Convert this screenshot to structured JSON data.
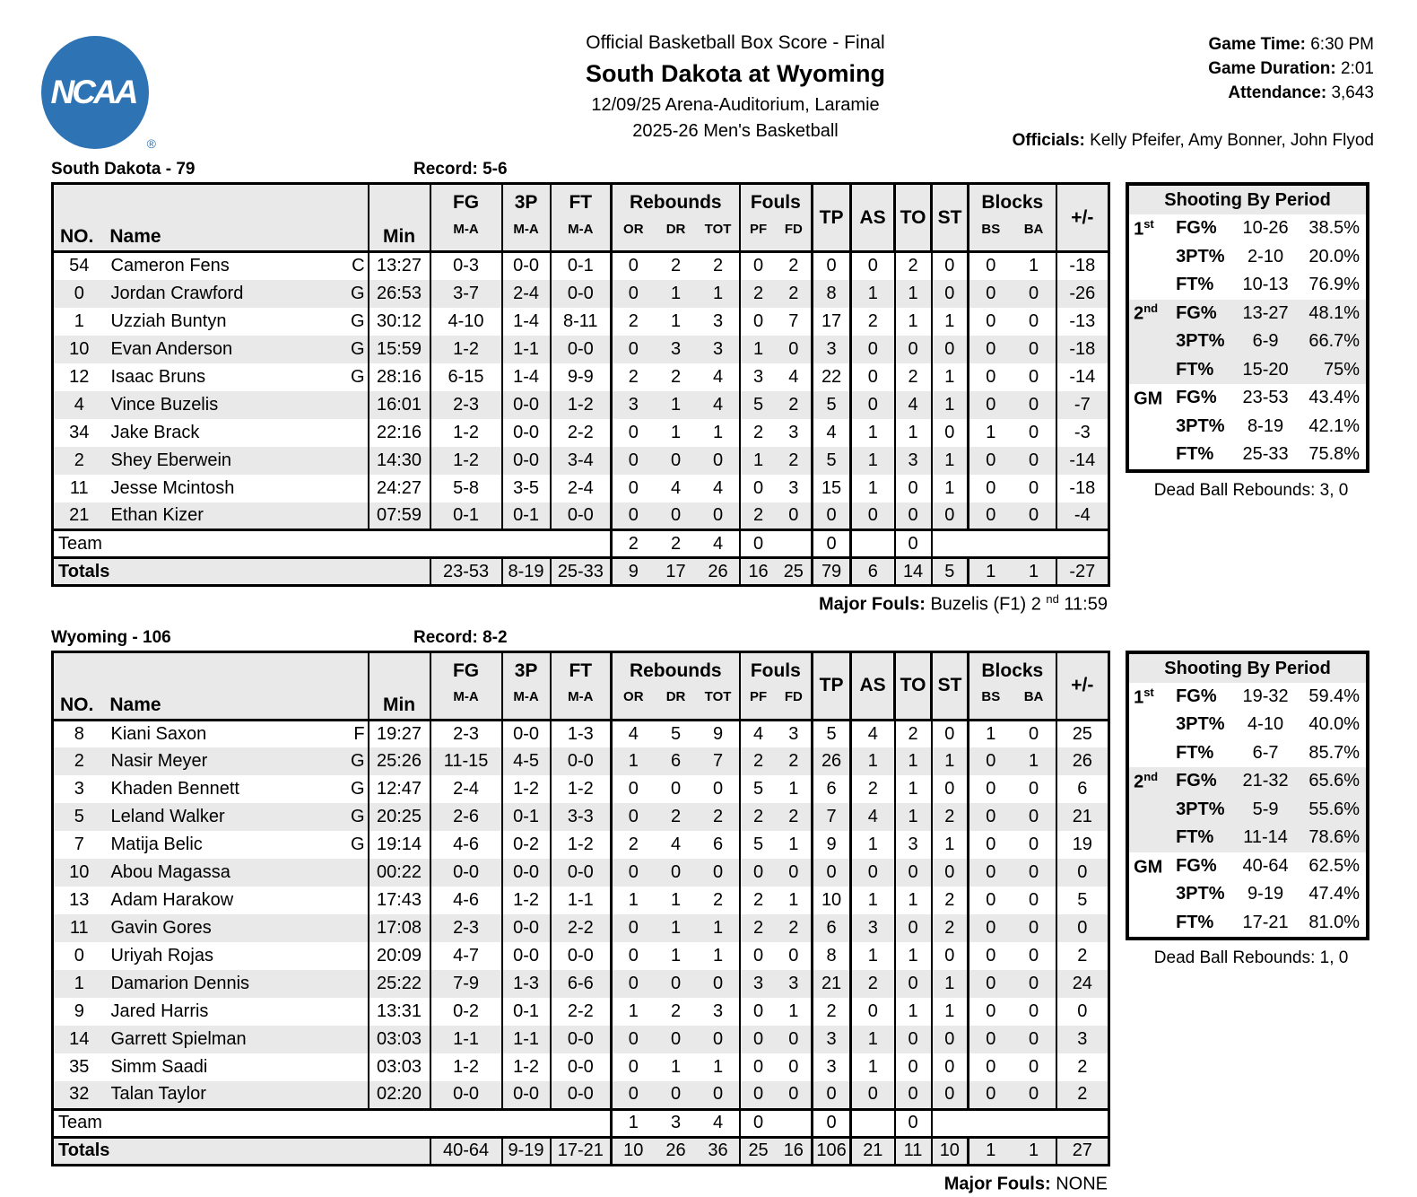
{
  "header": {
    "logo_text": "NCAA",
    "logo_reg": "®",
    "title_line": "Official Basketball Box Score - Final",
    "matchup": "South Dakota at Wyoming",
    "venue_line": "12/09/25 Arena-Auditorium, Laramie",
    "season_line": "2025-26 Men's Basketball",
    "game_time_label": "Game Time:",
    "game_time": "6:30 PM",
    "game_duration_label": "Game Duration:",
    "game_duration": "2:01",
    "attendance_label": "Attendance:",
    "attendance": "3,643",
    "officials_label": "Officials:",
    "officials": "Kelly Pfeifer, Amy Bonner, John Flyod"
  },
  "cols": {
    "no": "NO.",
    "name": "Name",
    "min": "Min",
    "fg": "FG",
    "p3": "3P",
    "ft": "FT",
    "ma": "M-A",
    "rebounds": "Rebounds",
    "or": "OR",
    "dr": "DR",
    "tot": "TOT",
    "fouls": "Fouls",
    "pf": "PF",
    "fd": "FD",
    "tp": "TP",
    "as": "AS",
    "to": "TO",
    "st": "ST",
    "blocks": "Blocks",
    "bs": "BS",
    "ba": "BA",
    "pm": "+/-",
    "team_label": "Team",
    "totals_label": "Totals",
    "shooting_title": "Shooting By Period"
  },
  "teams": [
    {
      "title": "South Dakota - 79",
      "record": "Record: 5-6",
      "players": [
        {
          "no": "54",
          "name": "Cameron Fens",
          "pos": "C",
          "min": "13:27",
          "fg": "0-3",
          "p3": "0-0",
          "ft": "0-1",
          "or": "0",
          "dr": "2",
          "tot": "2",
          "pf": "0",
          "fd": "2",
          "tp": "0",
          "as": "0",
          "to": "2",
          "st": "0",
          "bs": "0",
          "ba": "1",
          "pm": "-18"
        },
        {
          "no": "0",
          "name": "Jordan Crawford",
          "pos": "G",
          "min": "26:53",
          "fg": "3-7",
          "p3": "2-4",
          "ft": "0-0",
          "or": "0",
          "dr": "1",
          "tot": "1",
          "pf": "2",
          "fd": "2",
          "tp": "8",
          "as": "1",
          "to": "1",
          "st": "0",
          "bs": "0",
          "ba": "0",
          "pm": "-26"
        },
        {
          "no": "1",
          "name": "Uzziah Buntyn",
          "pos": "G",
          "min": "30:12",
          "fg": "4-10",
          "p3": "1-4",
          "ft": "8-11",
          "or": "2",
          "dr": "1",
          "tot": "3",
          "pf": "0",
          "fd": "7",
          "tp": "17",
          "as": "2",
          "to": "1",
          "st": "1",
          "bs": "0",
          "ba": "0",
          "pm": "-13"
        },
        {
          "no": "10",
          "name": "Evan Anderson",
          "pos": "G",
          "min": "15:59",
          "fg": "1-2",
          "p3": "1-1",
          "ft": "0-0",
          "or": "0",
          "dr": "3",
          "tot": "3",
          "pf": "1",
          "fd": "0",
          "tp": "3",
          "as": "0",
          "to": "0",
          "st": "0",
          "bs": "0",
          "ba": "0",
          "pm": "-18"
        },
        {
          "no": "12",
          "name": "Isaac Bruns",
          "pos": "G",
          "min": "28:16",
          "fg": "6-15",
          "p3": "1-4",
          "ft": "9-9",
          "or": "2",
          "dr": "2",
          "tot": "4",
          "pf": "3",
          "fd": "4",
          "tp": "22",
          "as": "0",
          "to": "2",
          "st": "1",
          "bs": "0",
          "ba": "0",
          "pm": "-14"
        },
        {
          "no": "4",
          "name": "Vince Buzelis",
          "pos": "",
          "min": "16:01",
          "fg": "2-3",
          "p3": "0-0",
          "ft": "1-2",
          "or": "3",
          "dr": "1",
          "tot": "4",
          "pf": "5",
          "fd": "2",
          "tp": "5",
          "as": "0",
          "to": "4",
          "st": "1",
          "bs": "0",
          "ba": "0",
          "pm": "-7"
        },
        {
          "no": "34",
          "name": "Jake Brack",
          "pos": "",
          "min": "22:16",
          "fg": "1-2",
          "p3": "0-0",
          "ft": "2-2",
          "or": "0",
          "dr": "1",
          "tot": "1",
          "pf": "2",
          "fd": "3",
          "tp": "4",
          "as": "1",
          "to": "1",
          "st": "0",
          "bs": "1",
          "ba": "0",
          "pm": "-3"
        },
        {
          "no": "2",
          "name": "Shey Eberwein",
          "pos": "",
          "min": "14:30",
          "fg": "1-2",
          "p3": "0-0",
          "ft": "3-4",
          "or": "0",
          "dr": "0",
          "tot": "0",
          "pf": "1",
          "fd": "2",
          "tp": "5",
          "as": "1",
          "to": "3",
          "st": "1",
          "bs": "0",
          "ba": "0",
          "pm": "-14"
        },
        {
          "no": "11",
          "name": "Jesse Mcintosh",
          "pos": "",
          "min": "24:27",
          "fg": "5-8",
          "p3": "3-5",
          "ft": "2-4",
          "or": "0",
          "dr": "4",
          "tot": "4",
          "pf": "0",
          "fd": "3",
          "tp": "15",
          "as": "1",
          "to": "0",
          "st": "1",
          "bs": "0",
          "ba": "0",
          "pm": "-18"
        },
        {
          "no": "21",
          "name": "Ethan Kizer",
          "pos": "",
          "min": "07:59",
          "fg": "0-1",
          "p3": "0-1",
          "ft": "0-0",
          "or": "0",
          "dr": "0",
          "tot": "0",
          "pf": "2",
          "fd": "0",
          "tp": "0",
          "as": "0",
          "to": "0",
          "st": "0",
          "bs": "0",
          "ba": "0",
          "pm": "-4"
        }
      ],
      "team_row": {
        "or": "2",
        "dr": "2",
        "tot": "4",
        "pf": "0",
        "tp": "0",
        "to": "0"
      },
      "totals": {
        "fg": "23-53",
        "p3": "8-19",
        "ft": "25-33",
        "or": "9",
        "dr": "17",
        "tot": "26",
        "pf": "16",
        "fd": "25",
        "tp": "79",
        "as": "6",
        "to": "14",
        "st": "5",
        "bs": "1",
        "ba": "1",
        "pm": "-27"
      },
      "shooting": [
        {
          "p": "1",
          "sup": "st",
          "label": "FG%",
          "ma": "10-26",
          "pct": "38.5%"
        },
        {
          "p": "",
          "sup": "",
          "label": "3PT%",
          "ma": "2-10",
          "pct": "20.0%"
        },
        {
          "p": "",
          "sup": "",
          "label": "FT%",
          "ma": "10-13",
          "pct": "76.9%"
        },
        {
          "p": "2",
          "sup": "nd",
          "label": "FG%",
          "ma": "13-27",
          "pct": "48.1%"
        },
        {
          "p": "",
          "sup": "",
          "label": "3PT%",
          "ma": "6-9",
          "pct": "66.7%"
        },
        {
          "p": "",
          "sup": "",
          "label": "FT%",
          "ma": "15-20",
          "pct": "75%"
        },
        {
          "p": "GM",
          "sup": "",
          "label": "FG%",
          "ma": "23-53",
          "pct": "43.4%"
        },
        {
          "p": "",
          "sup": "",
          "label": "3PT%",
          "ma": "8-19",
          "pct": "42.1%"
        },
        {
          "p": "",
          "sup": "",
          "label": "FT%",
          "ma": "25-33",
          "pct": "75.8%"
        }
      ],
      "dead_ball": "Dead Ball Rebounds: 3, 0",
      "major_fouls_label": "Major Fouls:",
      "major_fouls_pre": "Buzelis (F1) 2",
      "major_fouls_sup": "nd",
      "major_fouls_post": "11:59"
    },
    {
      "title": "Wyoming - 106",
      "record": "Record: 8-2",
      "players": [
        {
          "no": "8",
          "name": "Kiani Saxon",
          "pos": "F",
          "min": "19:27",
          "fg": "2-3",
          "p3": "0-0",
          "ft": "1-3",
          "or": "4",
          "dr": "5",
          "tot": "9",
          "pf": "4",
          "fd": "3",
          "tp": "5",
          "as": "4",
          "to": "2",
          "st": "0",
          "bs": "1",
          "ba": "0",
          "pm": "25"
        },
        {
          "no": "2",
          "name": "Nasir Meyer",
          "pos": "G",
          "min": "25:26",
          "fg": "11-15",
          "p3": "4-5",
          "ft": "0-0",
          "or": "1",
          "dr": "6",
          "tot": "7",
          "pf": "2",
          "fd": "2",
          "tp": "26",
          "as": "1",
          "to": "1",
          "st": "1",
          "bs": "0",
          "ba": "1",
          "pm": "26"
        },
        {
          "no": "3",
          "name": "Khaden Bennett",
          "pos": "G",
          "min": "12:47",
          "fg": "2-4",
          "p3": "1-2",
          "ft": "1-2",
          "or": "0",
          "dr": "0",
          "tot": "0",
          "pf": "5",
          "fd": "1",
          "tp": "6",
          "as": "2",
          "to": "1",
          "st": "0",
          "bs": "0",
          "ba": "0",
          "pm": "6"
        },
        {
          "no": "5",
          "name": "Leland Walker",
          "pos": "G",
          "min": "20:25",
          "fg": "2-6",
          "p3": "0-1",
          "ft": "3-3",
          "or": "0",
          "dr": "2",
          "tot": "2",
          "pf": "2",
          "fd": "2",
          "tp": "7",
          "as": "4",
          "to": "1",
          "st": "2",
          "bs": "0",
          "ba": "0",
          "pm": "21"
        },
        {
          "no": "7",
          "name": "Matija Belic",
          "pos": "G",
          "min": "19:14",
          "fg": "4-6",
          "p3": "0-2",
          "ft": "1-2",
          "or": "2",
          "dr": "4",
          "tot": "6",
          "pf": "5",
          "fd": "1",
          "tp": "9",
          "as": "1",
          "to": "3",
          "st": "1",
          "bs": "0",
          "ba": "0",
          "pm": "19"
        },
        {
          "no": "10",
          "name": "Abou Magassa",
          "pos": "",
          "min": "00:22",
          "fg": "0-0",
          "p3": "0-0",
          "ft": "0-0",
          "or": "0",
          "dr": "0",
          "tot": "0",
          "pf": "0",
          "fd": "0",
          "tp": "0",
          "as": "0",
          "to": "0",
          "st": "0",
          "bs": "0",
          "ba": "0",
          "pm": "0"
        },
        {
          "no": "13",
          "name": "Adam Harakow",
          "pos": "",
          "min": "17:43",
          "fg": "4-6",
          "p3": "1-2",
          "ft": "1-1",
          "or": "1",
          "dr": "1",
          "tot": "2",
          "pf": "2",
          "fd": "1",
          "tp": "10",
          "as": "1",
          "to": "1",
          "st": "2",
          "bs": "0",
          "ba": "0",
          "pm": "5"
        },
        {
          "no": "11",
          "name": "Gavin Gores",
          "pos": "",
          "min": "17:08",
          "fg": "2-3",
          "p3": "0-0",
          "ft": "2-2",
          "or": "0",
          "dr": "1",
          "tot": "1",
          "pf": "2",
          "fd": "2",
          "tp": "6",
          "as": "3",
          "to": "0",
          "st": "2",
          "bs": "0",
          "ba": "0",
          "pm": "0"
        },
        {
          "no": "0",
          "name": "Uriyah Rojas",
          "pos": "",
          "min": "20:09",
          "fg": "4-7",
          "p3": "0-0",
          "ft": "0-0",
          "or": "0",
          "dr": "1",
          "tot": "1",
          "pf": "0",
          "fd": "0",
          "tp": "8",
          "as": "1",
          "to": "1",
          "st": "0",
          "bs": "0",
          "ba": "0",
          "pm": "2"
        },
        {
          "no": "1",
          "name": "Damarion Dennis",
          "pos": "",
          "min": "25:22",
          "fg": "7-9",
          "p3": "1-3",
          "ft": "6-6",
          "or": "0",
          "dr": "0",
          "tot": "0",
          "pf": "3",
          "fd": "3",
          "tp": "21",
          "as": "2",
          "to": "0",
          "st": "1",
          "bs": "0",
          "ba": "0",
          "pm": "24"
        },
        {
          "no": "9",
          "name": "Jared Harris",
          "pos": "",
          "min": "13:31",
          "fg": "0-2",
          "p3": "0-1",
          "ft": "2-2",
          "or": "1",
          "dr": "2",
          "tot": "3",
          "pf": "0",
          "fd": "1",
          "tp": "2",
          "as": "0",
          "to": "1",
          "st": "1",
          "bs": "0",
          "ba": "0",
          "pm": "0"
        },
        {
          "no": "14",
          "name": "Garrett Spielman",
          "pos": "",
          "min": "03:03",
          "fg": "1-1",
          "p3": "1-1",
          "ft": "0-0",
          "or": "0",
          "dr": "0",
          "tot": "0",
          "pf": "0",
          "fd": "0",
          "tp": "3",
          "as": "1",
          "to": "0",
          "st": "0",
          "bs": "0",
          "ba": "0",
          "pm": "3"
        },
        {
          "no": "35",
          "name": "Simm Saadi",
          "pos": "",
          "min": "03:03",
          "fg": "1-2",
          "p3": "1-2",
          "ft": "0-0",
          "or": "0",
          "dr": "1",
          "tot": "1",
          "pf": "0",
          "fd": "0",
          "tp": "3",
          "as": "1",
          "to": "0",
          "st": "0",
          "bs": "0",
          "ba": "0",
          "pm": "2"
        },
        {
          "no": "32",
          "name": "Talan Taylor",
          "pos": "",
          "min": "02:20",
          "fg": "0-0",
          "p3": "0-0",
          "ft": "0-0",
          "or": "0",
          "dr": "0",
          "tot": "0",
          "pf": "0",
          "fd": "0",
          "tp": "0",
          "as": "0",
          "to": "0",
          "st": "0",
          "bs": "0",
          "ba": "0",
          "pm": "2"
        }
      ],
      "team_row": {
        "or": "1",
        "dr": "3",
        "tot": "4",
        "pf": "0",
        "tp": "0",
        "to": "0"
      },
      "totals": {
        "fg": "40-64",
        "p3": "9-19",
        "ft": "17-21",
        "or": "10",
        "dr": "26",
        "tot": "36",
        "pf": "25",
        "fd": "16",
        "tp": "106",
        "as": "21",
        "to": "11",
        "st": "10",
        "bs": "1",
        "ba": "1",
        "pm": "27"
      },
      "shooting": [
        {
          "p": "1",
          "sup": "st",
          "label": "FG%",
          "ma": "19-32",
          "pct": "59.4%"
        },
        {
          "p": "",
          "sup": "",
          "label": "3PT%",
          "ma": "4-10",
          "pct": "40.0%"
        },
        {
          "p": "",
          "sup": "",
          "label": "FT%",
          "ma": "6-7",
          "pct": "85.7%"
        },
        {
          "p": "2",
          "sup": "nd",
          "label": "FG%",
          "ma": "21-32",
          "pct": "65.6%"
        },
        {
          "p": "",
          "sup": "",
          "label": "3PT%",
          "ma": "5-9",
          "pct": "55.6%"
        },
        {
          "p": "",
          "sup": "",
          "label": "FT%",
          "ma": "11-14",
          "pct": "78.6%"
        },
        {
          "p": "GM",
          "sup": "",
          "label": "FG%",
          "ma": "40-64",
          "pct": "62.5%"
        },
        {
          "p": "",
          "sup": "",
          "label": "3PT%",
          "ma": "9-19",
          "pct": "47.4%"
        },
        {
          "p": "",
          "sup": "",
          "label": "FT%",
          "ma": "17-21",
          "pct": "81.0%"
        }
      ],
      "dead_ball": "Dead Ball Rebounds: 1, 0",
      "major_fouls_label": "Major Fouls:",
      "major_fouls_pre": "NONE",
      "major_fouls_sup": "",
      "major_fouls_post": ""
    }
  ]
}
